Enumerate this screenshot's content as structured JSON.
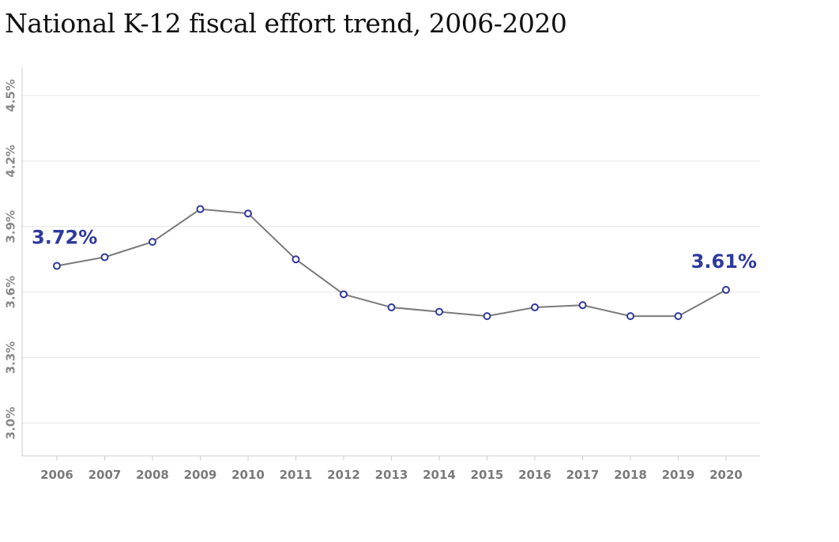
{
  "title": "National K-12 fiscal effort trend, 2006-2020",
  "chart_data": {
    "type": "line",
    "title": "National K-12 fiscal effort trend, 2006-2020",
    "xlabel": "",
    "ylabel": "",
    "x": [
      "2006",
      "2007",
      "2008",
      "2009",
      "2010",
      "2011",
      "2012",
      "2013",
      "2014",
      "2015",
      "2016",
      "2017",
      "2018",
      "2019",
      "2020"
    ],
    "series": [
      {
        "values": [
          3.72,
          3.76,
          3.83,
          3.98,
          3.96,
          3.75,
          3.59,
          3.53,
          3.51,
          3.49,
          3.53,
          3.54,
          3.49,
          3.49,
          3.61
        ]
      }
    ],
    "y_ticks": [
      "3.0%",
      "3.3%",
      "3.6%",
      "3.9%",
      "4.2%",
      "4.5%"
    ],
    "y_tick_values": [
      3.0,
      3.3,
      3.6,
      3.9,
      4.2,
      4.5
    ],
    "ylim": [
      2.85,
      4.63
    ],
    "grid": true,
    "annotations": [
      {
        "x": "2006",
        "label": "3.72%"
      },
      {
        "x": "2020",
        "label": "3.61%"
      }
    ],
    "colors": {
      "line": "#7a7a7a",
      "marker_stroke": "#2e3a9e",
      "annotation": "#2e3a9e",
      "grid": "#e6e6e6"
    }
  }
}
